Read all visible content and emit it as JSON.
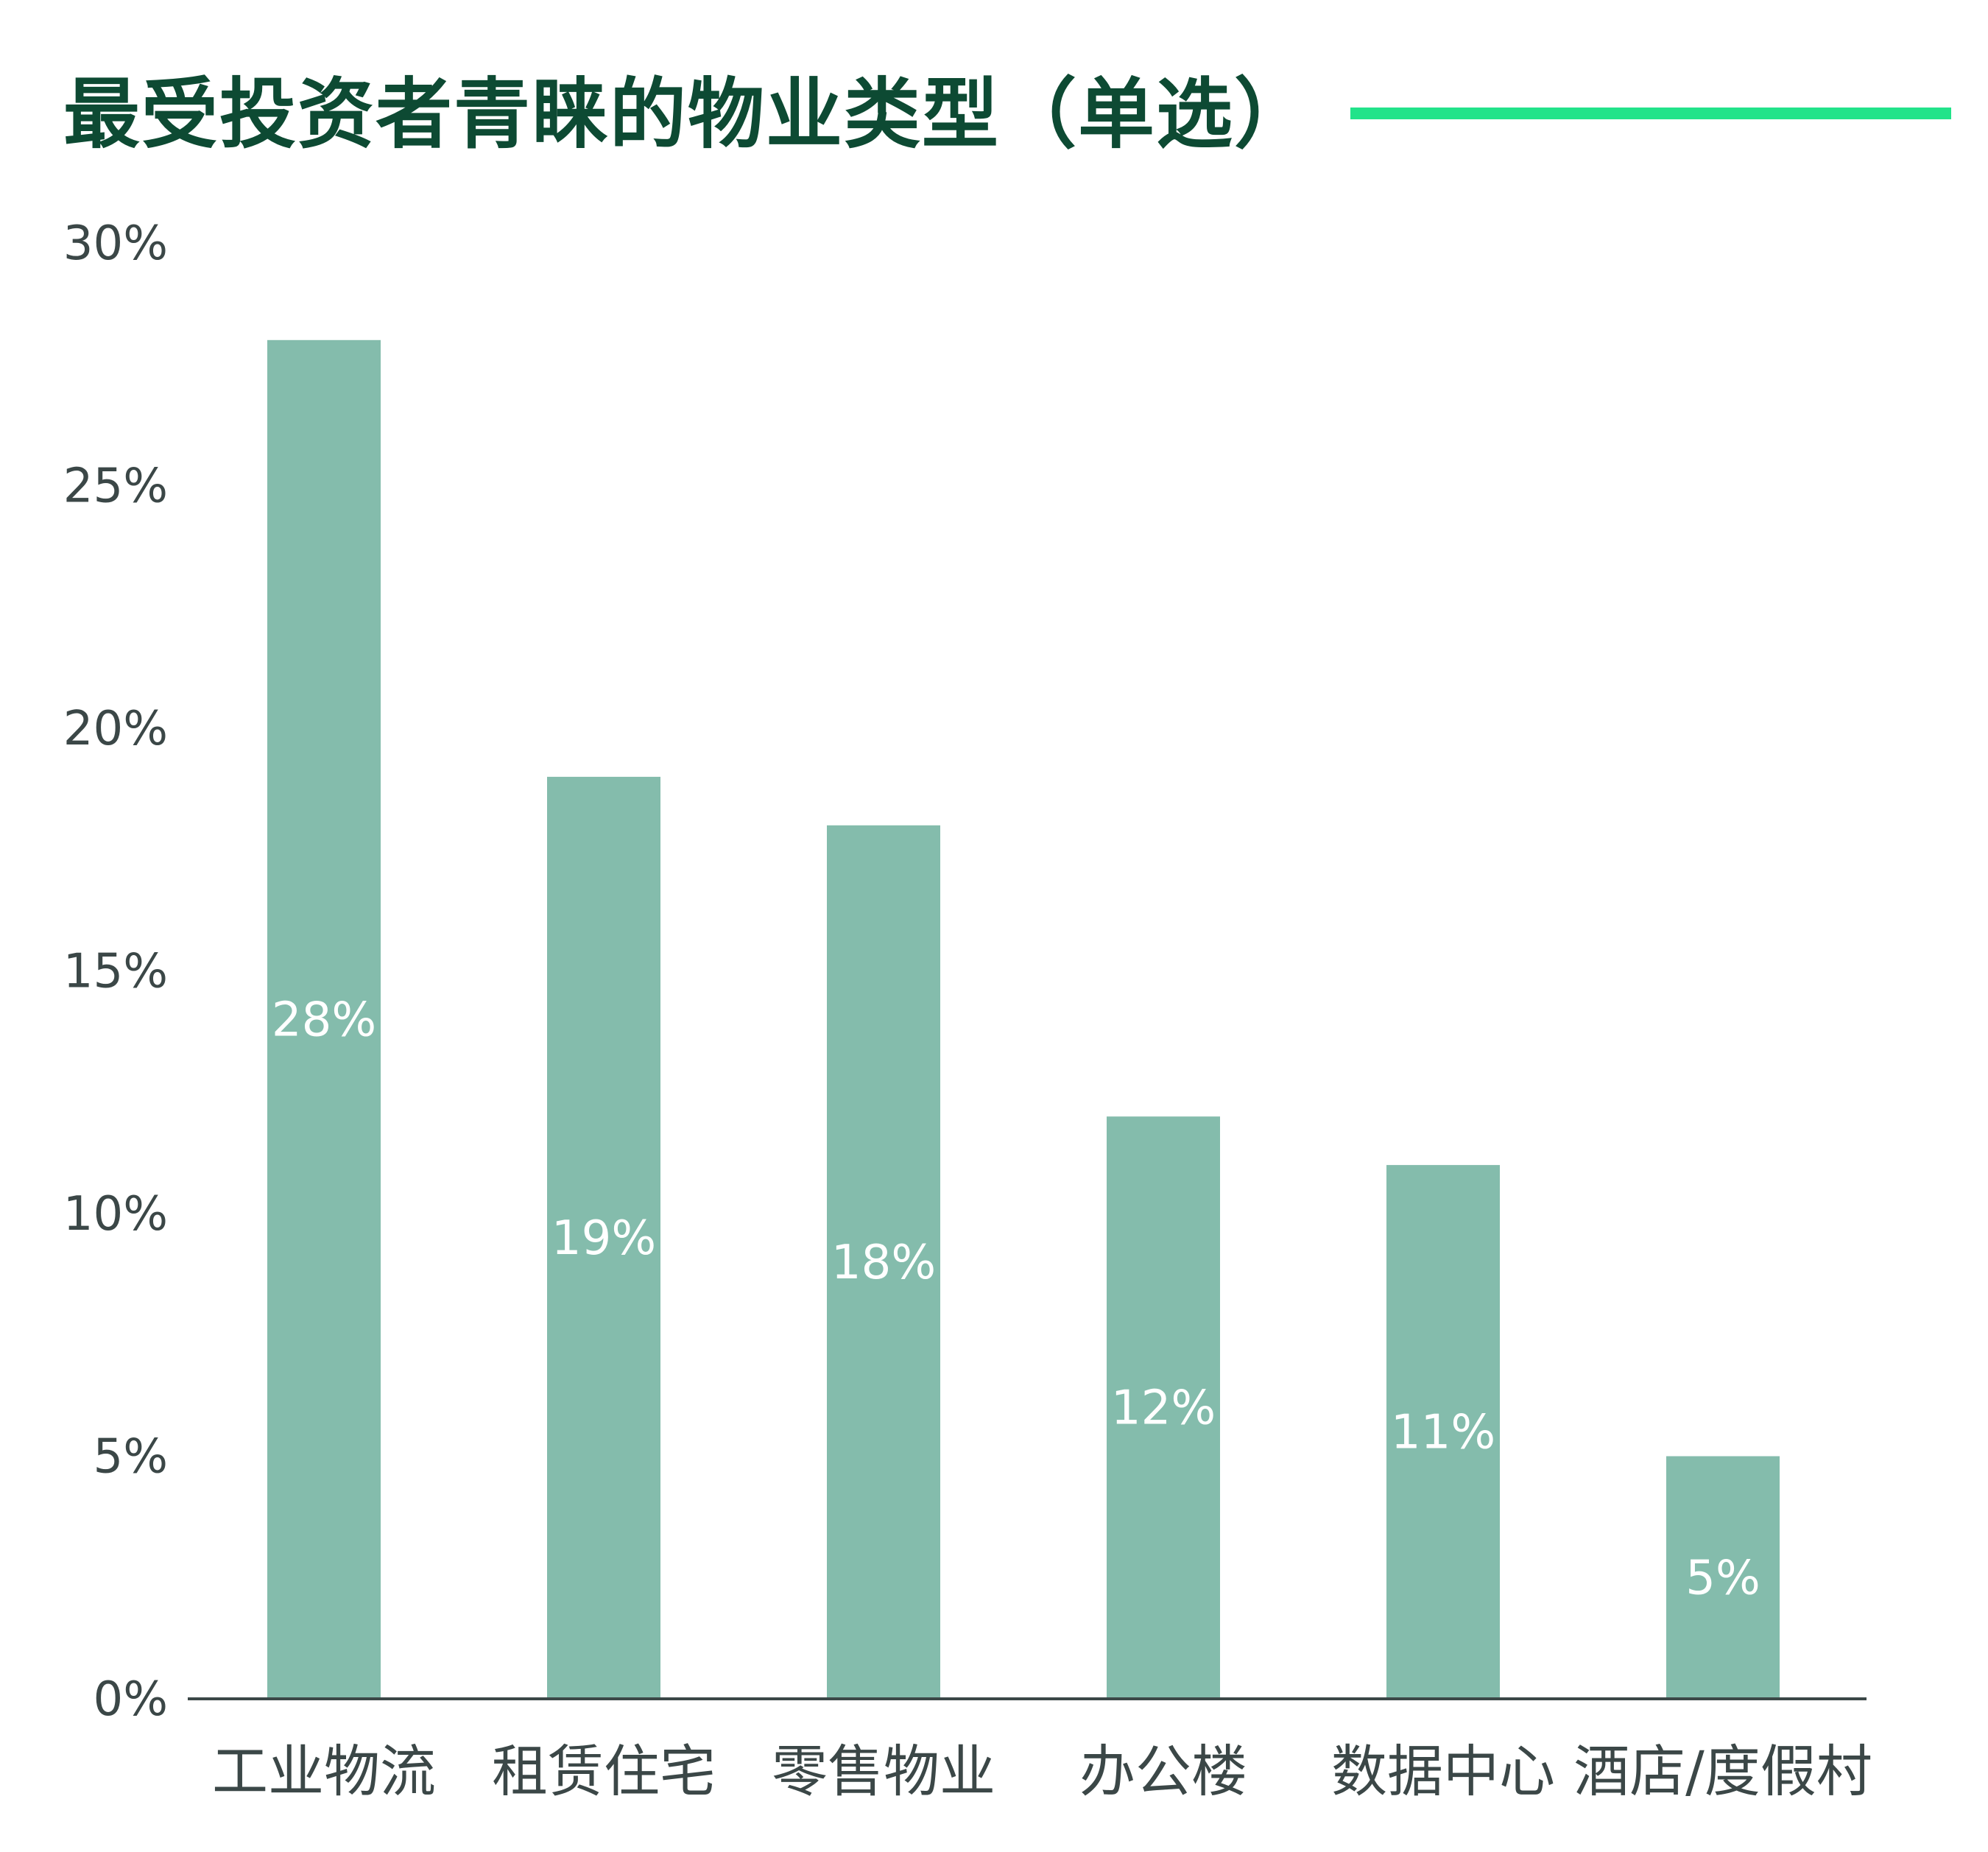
{
  "chart_data": {
    "type": "bar",
    "title": "最受投资者青睐的物业类型（单选）",
    "categories": [
      "工业物流",
      "租赁住宅",
      "零售物业",
      "办公楼",
      "数据中心",
      "酒店/度假村"
    ],
    "values": [
      28,
      19,
      18,
      12,
      11,
      5
    ],
    "data_labels": [
      "28%",
      "19%",
      "18%",
      "12%",
      "11%",
      "5%"
    ],
    "xlabel": "",
    "ylabel": "",
    "ylim": [
      0,
      30
    ],
    "yticks": [
      0,
      5,
      10,
      15,
      20,
      25,
      30
    ],
    "ytick_labels": [
      "0%",
      "5%",
      "10%",
      "15%",
      "20%",
      "25%",
      "30%"
    ],
    "grid": false,
    "legend": "none",
    "colors": {
      "bar": "#84bcac",
      "title": "#0d4a33",
      "accent_line": "#22e38a",
      "axis": "#3b4747",
      "data_label": "#ffffff"
    }
  }
}
